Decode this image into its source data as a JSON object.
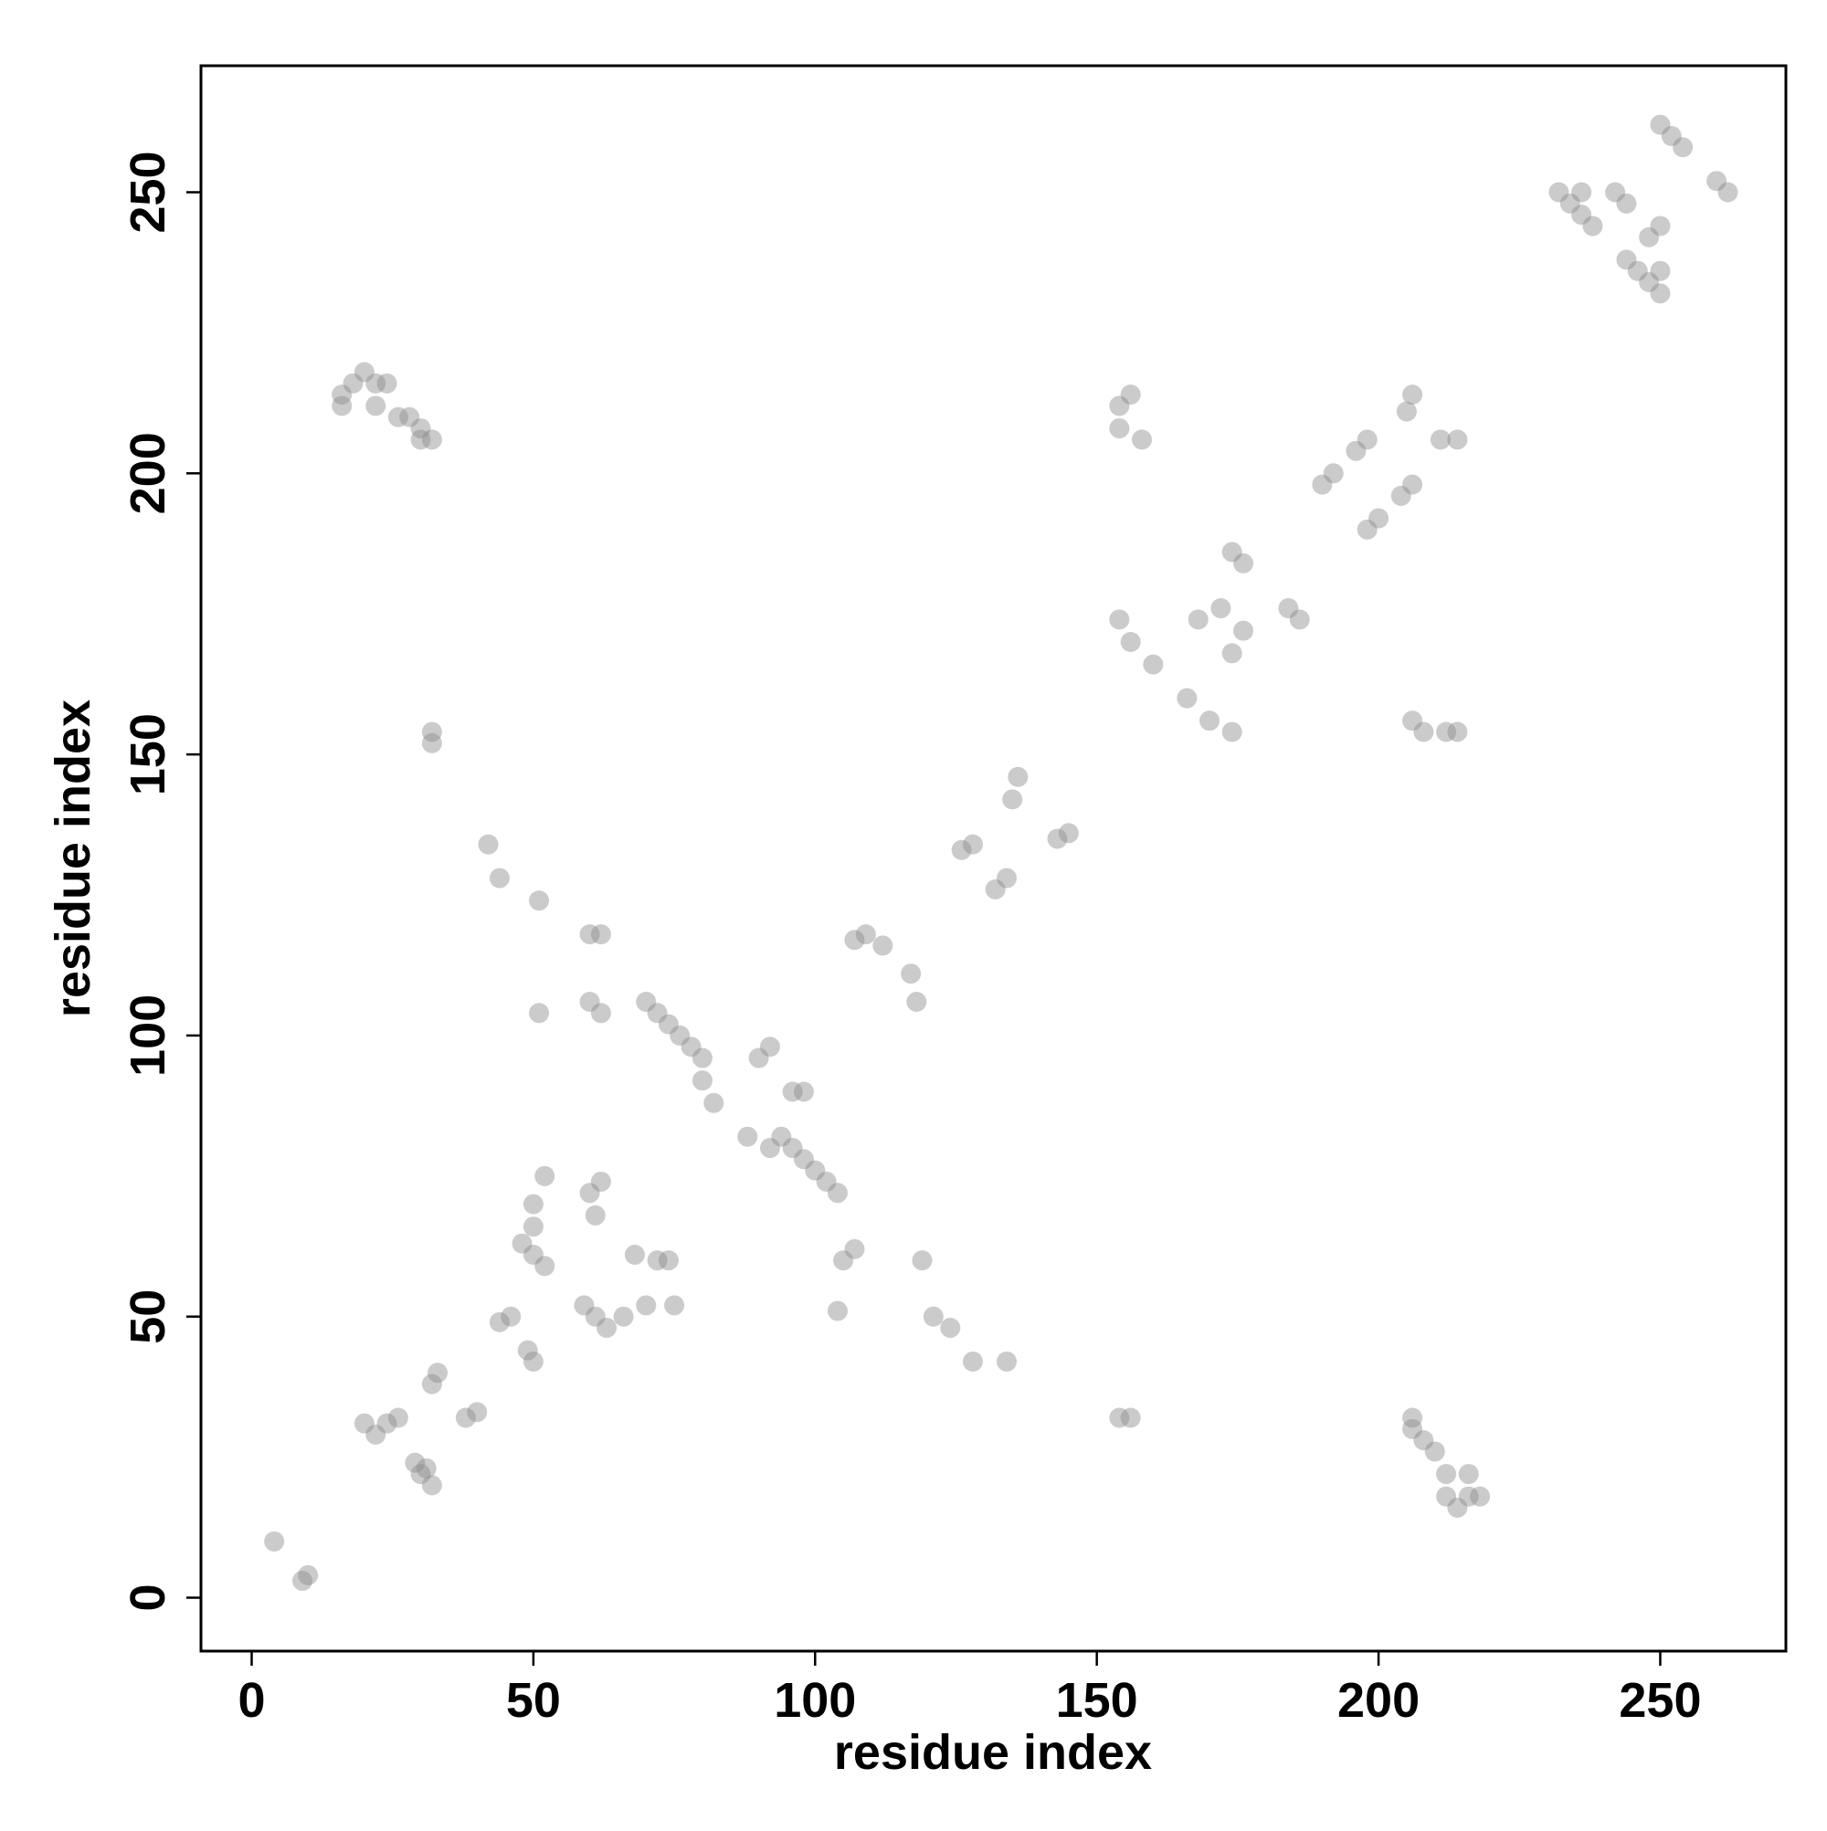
{
  "chart_data": {
    "type": "scatter",
    "xlabel": "residue index",
    "ylabel": "residue index",
    "xlim": [
      -9,
      272.3
    ],
    "ylim": [
      -9.5,
      272.5
    ],
    "xticks": [
      0,
      50,
      100,
      150,
      200,
      250
    ],
    "yticks": [
      0,
      50,
      100,
      150,
      200,
      250
    ],
    "color": "#8c8c8c",
    "x": [
      4,
      10,
      9,
      20,
      22,
      24,
      26,
      31,
      30,
      32,
      29,
      38,
      40,
      32,
      33,
      44,
      46,
      49,
      50,
      52,
      50,
      48,
      50,
      50,
      52,
      59,
      61,
      63,
      66,
      70,
      75,
      61,
      60,
      62,
      68,
      72,
      74,
      70,
      72,
      74,
      76,
      78,
      80,
      82,
      80,
      88,
      92,
      94,
      96,
      98,
      100,
      102,
      104,
      90,
      92,
      96,
      98,
      60,
      62,
      60,
      62,
      51,
      51,
      42,
      44,
      104,
      105,
      107,
      119,
      121,
      124,
      128,
      134,
      107,
      109,
      112,
      117,
      118,
      135,
      136,
      143,
      145,
      126,
      128,
      132,
      134,
      160,
      166,
      154,
      156,
      174,
      170,
      168,
      172,
      174,
      176,
      176,
      174,
      184,
      186,
      190,
      192,
      196,
      198,
      198,
      200,
      204,
      206,
      211,
      214,
      205,
      206,
      154,
      154,
      156,
      158,
      208,
      212,
      214,
      206,
      16,
      18,
      20,
      22,
      24,
      16,
      22,
      26,
      28,
      30,
      32,
      30,
      214,
      216,
      218,
      216,
      212,
      212,
      206,
      208,
      210,
      206,
      32,
      32,
      154,
      156,
      236,
      238,
      232,
      234,
      236,
      244,
      246,
      248,
      250,
      250,
      250,
      252,
      254,
      260,
      262,
      242,
      244,
      248,
      250
    ],
    "y": [
      10,
      4,
      3,
      31,
      29,
      31,
      32,
      23,
      22,
      20,
      24,
      32,
      33,
      38,
      40,
      49,
      50,
      44,
      42,
      59,
      61,
      63,
      66,
      70,
      75,
      52,
      50,
      48,
      50,
      52,
      52,
      68,
      72,
      74,
      61,
      60,
      60,
      106,
      104,
      102,
      100,
      98,
      96,
      88,
      92,
      82,
      80,
      82,
      80,
      78,
      76,
      74,
      72,
      96,
      98,
      90,
      90,
      106,
      104,
      118,
      118,
      104,
      124,
      134,
      128,
      51,
      60,
      62,
      60,
      50,
      48,
      42,
      42,
      117,
      118,
      116,
      111,
      106,
      142,
      146,
      135,
      136,
      133,
      134,
      126,
      128,
      166,
      160,
      174,
      170,
      154,
      156,
      174,
      176,
      168,
      172,
      184,
      186,
      176,
      174,
      198,
      200,
      204,
      206,
      190,
      192,
      196,
      198,
      206,
      206,
      211,
      214,
      208,
      212,
      214,
      206,
      154,
      154,
      154,
      156,
      214,
      216,
      218,
      216,
      216,
      212,
      212,
      210,
      210,
      208,
      206,
      206,
      16,
      18,
      18,
      22,
      18,
      22,
      30,
      28,
      26,
      32,
      154,
      152,
      32,
      32,
      246,
      244,
      250,
      248,
      250,
      238,
      236,
      234,
      232,
      236,
      262,
      260,
      258,
      252,
      250,
      250,
      248,
      242,
      244
    ]
  }
}
